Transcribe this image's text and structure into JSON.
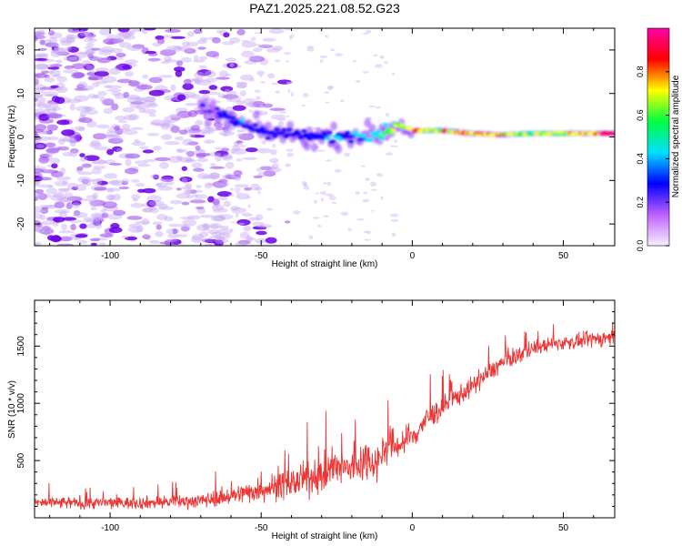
{
  "chart_data": [
    {
      "type": "heatmap",
      "title": "PAZ1.2025.221.08.52.G23",
      "xlabel": "Height of straight line (km)",
      "ylabel": "Frequency (Hz)",
      "xlim": [
        -125,
        67
      ],
      "ylim": [
        -25,
        25
      ],
      "x_ticks": [
        -100,
        -50,
        0,
        50
      ],
      "y_ticks": [
        -20,
        -10,
        0,
        10,
        20
      ],
      "colorbar": {
        "label": "Normalized spectral amplitude",
        "range": [
          0,
          1
        ],
        "ticks": [
          "0.0",
          "0.2",
          "0.4",
          "0.6",
          "0.8"
        ],
        "colors": [
          "#f4f0ff",
          "#c060ff",
          "#0000ff",
          "#00e0ff",
          "#00ff40",
          "#ffff00",
          "#ff0000",
          "#ff00aa"
        ]
      },
      "ridge": {
        "x": [
          -70,
          -65,
          -60,
          -55,
          -50,
          -45,
          -40,
          -35,
          -30,
          -25,
          -20,
          -15,
          -10,
          -5,
          0,
          5,
          10,
          20,
          30,
          40,
          50,
          60,
          67
        ],
        "freq": [
          7,
          5,
          4,
          2.5,
          1.5,
          1,
          0.5,
          0,
          0,
          0,
          0.5,
          0.5,
          0.8,
          3,
          1.5,
          1.5,
          1.5,
          0.8,
          0.5,
          0.8,
          0.8,
          0.8,
          0.8
        ],
        "amplitude": [
          0.2,
          0.25,
          0.3,
          0.35,
          0.3,
          0.3,
          0.3,
          0.3,
          0.3,
          0.35,
          0.35,
          0.4,
          0.55,
          0.6,
          0.85,
          0.65,
          0.7,
          0.85,
          0.75,
          0.6,
          0.7,
          0.9,
          0.95
        ]
      },
      "noise_region_x": [
        -125,
        -60
      ],
      "noise_level": 0.15
    },
    {
      "type": "line",
      "xlabel": "Height of straight line (km)",
      "ylabel": "SNR (10 * v/v)",
      "xlim": [
        -125,
        67
      ],
      "ylim": [
        0,
        1900
      ],
      "x_ticks": [
        -100,
        -50,
        0,
        50
      ],
      "y_ticks": [
        500,
        1000,
        1500
      ],
      "color": "#ee3333",
      "trend": {
        "x": [
          -125,
          -110,
          -90,
          -70,
          -60,
          -50,
          -40,
          -30,
          -25,
          -20,
          -15,
          -12,
          -8,
          -5,
          0,
          5,
          10,
          15,
          20,
          25,
          30,
          35,
          40,
          45,
          50,
          55,
          60,
          67
        ],
        "mean": [
          130,
          130,
          130,
          150,
          190,
          250,
          300,
          380,
          430,
          430,
          520,
          480,
          640,
          630,
          700,
          870,
          960,
          1060,
          1150,
          1260,
          1360,
          1420,
          1480,
          1510,
          1530,
          1540,
          1560,
          1580
        ],
        "spread": [
          70,
          70,
          70,
          80,
          100,
          140,
          170,
          200,
          230,
          220,
          240,
          200,
          200,
          180,
          160,
          140,
          130,
          120,
          110,
          110,
          100,
          100,
          90,
          80,
          80,
          80,
          90,
          100
        ]
      }
    }
  ]
}
